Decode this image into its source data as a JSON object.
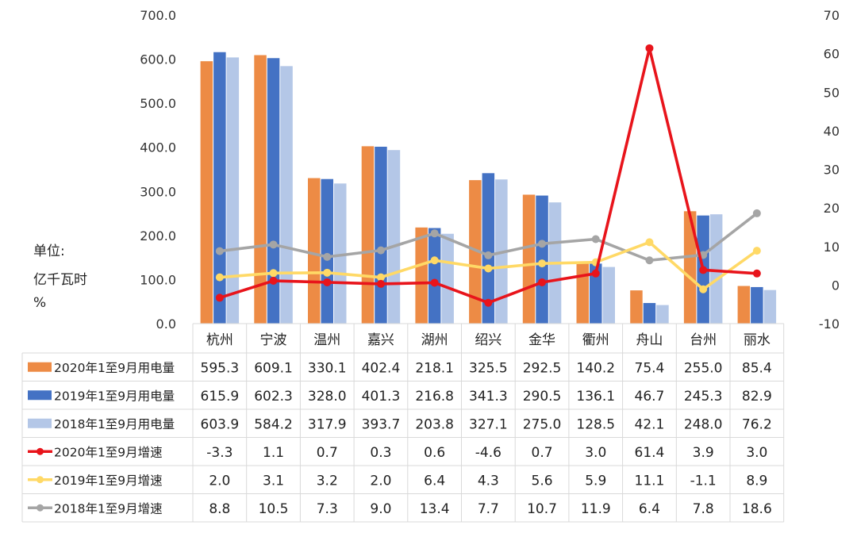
{
  "chart_data": {
    "type": "bar",
    "unit_lines": [
      "单位:",
      "亿千瓦时",
      "%"
    ],
    "categories": [
      "杭州",
      "宁波",
      "温州",
      "嘉兴",
      "湖州",
      "绍兴",
      "金华",
      "衢州",
      "舟山",
      "台州",
      "丽水"
    ],
    "y_left_ticks": [
      "700.0",
      "600.0",
      "500.0",
      "400.0",
      "300.0",
      "200.0",
      "100.0",
      "0.0"
    ],
    "y_right_ticks": [
      "70",
      "60",
      "50",
      "40",
      "30",
      "20",
      "10",
      "0",
      "-10"
    ],
    "ylim_left": [
      0,
      700
    ],
    "ylim_right": [
      -10,
      70
    ],
    "bar_series": [
      {
        "name": "2020年1至9月用电量",
        "color": "#ED8B45",
        "values": [
          "595.3",
          "609.1",
          "330.1",
          "402.4",
          "218.1",
          "325.5",
          "292.5",
          "140.2",
          "75.4",
          "255.0",
          "85.4"
        ]
      },
      {
        "name": "2019年1至9月用电量",
        "color": "#4472C4",
        "values": [
          "615.9",
          "602.3",
          "328.0",
          "401.3",
          "216.8",
          "341.3",
          "290.5",
          "136.1",
          "46.7",
          "245.3",
          "82.9"
        ]
      },
      {
        "name": "2018年1至9月用电量",
        "color": "#B4C7E7",
        "values": [
          "603.9",
          "584.2",
          "317.9",
          "393.7",
          "203.8",
          "327.1",
          "275.0",
          "128.5",
          "42.1",
          "248.0",
          "76.2"
        ]
      }
    ],
    "line_series": [
      {
        "name": "2020年1至9月增速",
        "color": "#E8141B",
        "values": [
          "-3.3",
          "1.1",
          "0.7",
          "0.3",
          "0.6",
          "-4.6",
          "0.7",
          "3.0",
          "61.4",
          "3.9",
          "3.0"
        ]
      },
      {
        "name": "2019年1至9月增速",
        "color": "#FFD966",
        "values": [
          "2.0",
          "3.1",
          "3.2",
          "2.0",
          "6.4",
          "4.3",
          "5.6",
          "5.9",
          "11.1",
          "-1.1",
          "8.9"
        ]
      },
      {
        "name": "2018年1至9月增速",
        "color": "#A5A5A5",
        "values": [
          "8.8",
          "10.5",
          "7.3",
          "9.0",
          "13.4",
          "7.7",
          "10.7",
          "11.9",
          "6.4",
          "7.8",
          "18.6"
        ]
      }
    ]
  }
}
